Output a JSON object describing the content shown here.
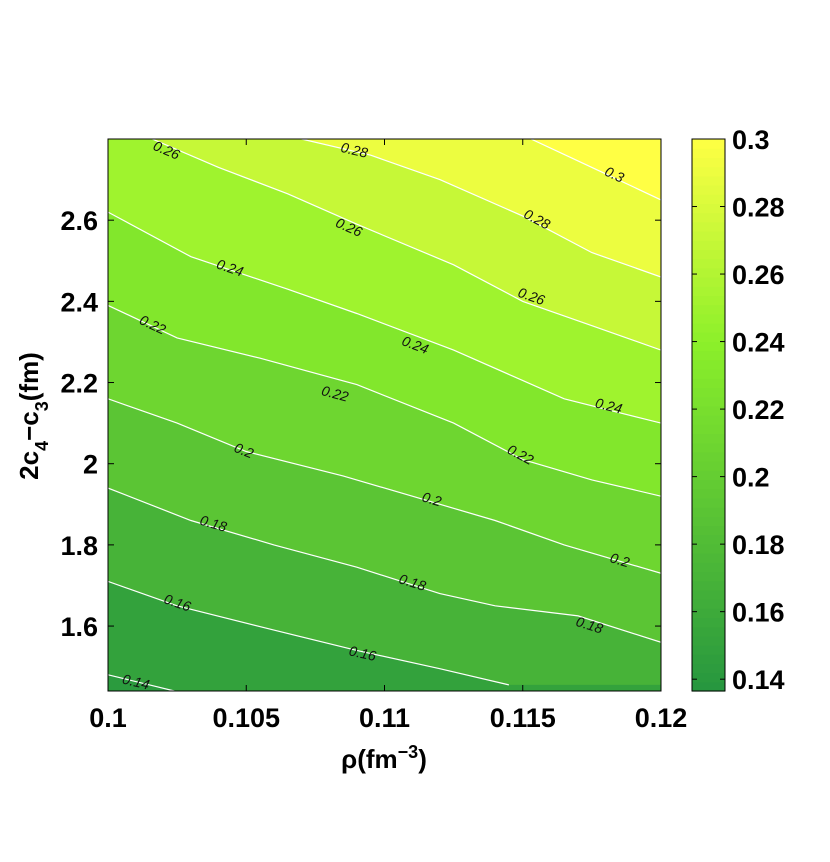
{
  "chart_data": {
    "type": "contour",
    "xlabel": {
      "base": "ρ(fm",
      "sup": "−3",
      "tail": ")"
    },
    "ylabel": {
      "p1": "2c",
      "s1": "4",
      "p2": "−c",
      "s2": "3",
      "p3": "(fm)"
    },
    "xlim": [
      0.1,
      0.12
    ],
    "ylim": [
      1.44,
      2.8
    ],
    "xticks": [
      0.1,
      0.105,
      0.11,
      0.115,
      0.12
    ],
    "xtick_labels": [
      "0.1",
      "0.105",
      "0.11",
      "0.115",
      "0.12"
    ],
    "yticks": [
      1.6,
      1.8,
      2.0,
      2.2,
      2.4,
      2.6
    ],
    "ytick_labels": [
      "1.6",
      "1.8",
      "2",
      "2.2",
      "2.4",
      "2.6"
    ],
    "colorbar": {
      "range": [
        0.1365,
        0.3
      ],
      "ticks": [
        0.14,
        0.16,
        0.18,
        0.2,
        0.22,
        0.24,
        0.26,
        0.28,
        0.3
      ],
      "tick_labels": [
        "0.14",
        "0.16",
        "0.18",
        "0.2",
        "0.22",
        "0.24",
        "0.26",
        "0.28",
        "0.3"
      ],
      "color_low": "#26963f",
      "color_mid": "#8cf02a",
      "color_high": "#ffff44"
    },
    "contour_levels": [
      {
        "level": 0.14,
        "label": "0.14",
        "points": [
          [
            0.1,
            1.48
          ],
          [
            0.1024,
            1.44
          ]
        ],
        "label_positions": [
          [
            0.101,
            1.46
          ]
        ]
      },
      {
        "level": 0.16,
        "label": "0.16",
        "points": [
          [
            0.1,
            1.71
          ],
          [
            0.1025,
            1.65
          ],
          [
            0.106,
            1.59
          ],
          [
            0.109,
            1.54
          ],
          [
            0.112,
            1.495
          ],
          [
            0.1145,
            1.455
          ]
        ],
        "label_positions": [
          [
            0.1025,
            1.655
          ],
          [
            0.1092,
            1.53
          ]
        ]
      },
      {
        "level": 0.18,
        "label": "0.18",
        "points": [
          [
            0.1,
            1.94
          ],
          [
            0.103,
            1.86
          ],
          [
            0.106,
            1.8
          ],
          [
            0.109,
            1.745
          ],
          [
            0.112,
            1.68
          ],
          [
            0.114,
            1.65
          ],
          [
            0.117,
            1.625
          ],
          [
            0.12,
            1.56
          ]
        ],
        "label_positions": [
          [
            0.1038,
            1.85
          ],
          [
            0.111,
            1.705
          ],
          [
            0.1174,
            1.6
          ]
        ]
      },
      {
        "level": 0.2,
        "label": "0.2",
        "points": [
          [
            0.1,
            2.16
          ],
          [
            0.1025,
            2.1
          ],
          [
            0.105,
            2.03
          ],
          [
            0.1085,
            1.97
          ],
          [
            0.1115,
            1.91
          ],
          [
            0.114,
            1.86
          ],
          [
            0.1165,
            1.8
          ],
          [
            0.12,
            1.73
          ]
        ],
        "label_positions": [
          [
            0.1049,
            2.03
          ],
          [
            0.1117,
            1.91
          ],
          [
            0.1185,
            1.76
          ]
        ]
      },
      {
        "level": 0.22,
        "label": "0.22",
        "points": [
          [
            0.1,
            2.39
          ],
          [
            0.1025,
            2.31
          ],
          [
            0.1055,
            2.26
          ],
          [
            0.109,
            2.195
          ],
          [
            0.1125,
            2.1
          ],
          [
            0.115,
            2.01
          ],
          [
            0.1175,
            1.96
          ],
          [
            0.12,
            1.92
          ]
        ],
        "label_positions": [
          [
            0.1016,
            2.34
          ],
          [
            0.1082,
            2.17
          ],
          [
            0.1149,
            2.02
          ]
        ]
      },
      {
        "level": 0.24,
        "label": "0.24",
        "points": [
          [
            0.1,
            2.62
          ],
          [
            0.103,
            2.51
          ],
          [
            0.1065,
            2.43
          ],
          [
            0.109,
            2.37
          ],
          [
            0.1125,
            2.28
          ],
          [
            0.1145,
            2.22
          ],
          [
            0.1165,
            2.16
          ],
          [
            0.12,
            2.1
          ]
        ],
        "label_positions": [
          [
            0.1044,
            2.48
          ],
          [
            0.1111,
            2.29
          ],
          [
            0.1181,
            2.14
          ]
        ]
      },
      {
        "level": 0.26,
        "label": "0.26",
        "points": [
          [
            0.1016,
            2.8
          ],
          [
            0.104,
            2.73
          ],
          [
            0.1065,
            2.665
          ],
          [
            0.109,
            2.59
          ],
          [
            0.1125,
            2.49
          ],
          [
            0.115,
            2.4
          ],
          [
            0.1175,
            2.34
          ],
          [
            0.12,
            2.28
          ]
        ],
        "label_positions": [
          [
            0.1021,
            2.77
          ],
          [
            0.1087,
            2.58
          ],
          [
            0.1153,
            2.41
          ]
        ]
      },
      {
        "level": 0.28,
        "label": "0.28",
        "points": [
          [
            0.107,
            2.8
          ],
          [
            0.1095,
            2.76
          ],
          [
            0.112,
            2.7
          ],
          [
            0.115,
            2.61
          ],
          [
            0.1175,
            2.52
          ],
          [
            0.12,
            2.46
          ]
        ],
        "label_positions": [
          [
            0.1089,
            2.77
          ],
          [
            0.1155,
            2.6
          ]
        ]
      },
      {
        "level": 0.3,
        "label": "0.3",
        "points": [
          [
            0.1153,
            2.8
          ],
          [
            0.1175,
            2.73
          ],
          [
            0.12,
            2.65
          ]
        ],
        "label_positions": [
          [
            0.1183,
            2.71
          ]
        ]
      }
    ]
  }
}
